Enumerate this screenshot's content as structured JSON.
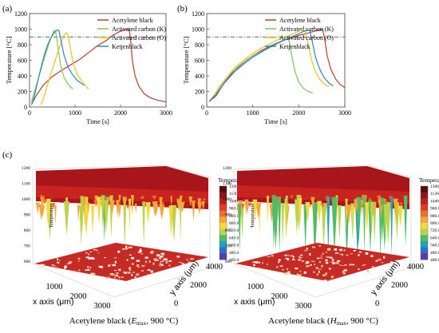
{
  "figure": {
    "panel_a_label": "(a)",
    "panel_b_label": "(b)",
    "panel_c_label": "(c)",
    "caption_left": {
      "prefix": "Acetylene black (",
      "symbol": "E",
      "sub": "max",
      "suffix": ", 900 °C)"
    },
    "caption_right": {
      "prefix": "Acetylene black (",
      "symbol": "H",
      "sub": "max",
      "suffix": ", 900 °C)"
    }
  },
  "chart_data": [
    {
      "panel": "a",
      "type": "line",
      "xlabel": "Time [s]",
      "ylabel": "Temperature [°C]",
      "xlim": [
        0,
        3000
      ],
      "ylim": [
        0,
        1200
      ],
      "xticks": [
        0,
        1000,
        2000,
        3000
      ],
      "yticks": [
        0,
        200,
        400,
        600,
        800,
        1000,
        1200
      ],
      "reference_line": 900,
      "legend": "top-right",
      "series": [
        {
          "name": "Acetylene black",
          "color": "#b5412f",
          "points": [
            [
              40,
              30
            ],
            [
              150,
              150
            ],
            [
              300,
              280
            ],
            [
              500,
              390
            ],
            [
              700,
              470
            ],
            [
              900,
              540
            ],
            [
              1100,
              610
            ],
            [
              1300,
              700
            ],
            [
              1500,
              790
            ],
            [
              1700,
              860
            ],
            [
              1830,
              920
            ],
            [
              1950,
              960
            ],
            [
              2050,
              985
            ],
            [
              2150,
              1000
            ],
            [
              2190,
              995
            ],
            [
              2220,
              880
            ],
            [
              2260,
              600
            ],
            [
              2320,
              400
            ],
            [
              2400,
              270
            ],
            [
              2520,
              170
            ],
            [
              2650,
              120
            ],
            [
              2800,
              90
            ],
            [
              3000,
              65
            ]
          ]
        },
        {
          "name": "Activated carbon (K)",
          "color": "#86c25a",
          "points": [
            [
              40,
              60
            ],
            [
              100,
              180
            ],
            [
              170,
              320
            ],
            [
              240,
              460
            ],
            [
              310,
              600
            ],
            [
              380,
              730
            ],
            [
              440,
              840
            ],
            [
              500,
              930
            ],
            [
              540,
              985
            ],
            [
              570,
              975
            ],
            [
              600,
              880
            ],
            [
              640,
              700
            ],
            [
              690,
              520
            ],
            [
              760,
              380
            ],
            [
              850,
              290
            ],
            [
              950,
              230
            ]
          ]
        },
        {
          "name": "Activated carbon (O)",
          "color": "#e8c41f",
          "points": [
            [
              250,
              30
            ],
            [
              330,
              150
            ],
            [
              420,
              330
            ],
            [
              520,
              520
            ],
            [
              620,
              700
            ],
            [
              700,
              830
            ],
            [
              760,
              920
            ],
            [
              800,
              950
            ],
            [
              830,
              945
            ],
            [
              850,
              920
            ],
            [
              900,
              750
            ],
            [
              960,
              560
            ],
            [
              1050,
              420
            ],
            [
              1150,
              330
            ],
            [
              1250,
              260
            ],
            [
              1300,
              230
            ]
          ]
        },
        {
          "name": "Ketjenblack",
          "color": "#2f86c6",
          "points": [
            [
              60,
              40
            ],
            [
              130,
              200
            ],
            [
              200,
              380
            ],
            [
              270,
              550
            ],
            [
              340,
              700
            ],
            [
              400,
              800
            ],
            [
              460,
              880
            ],
            [
              520,
              935
            ],
            [
              560,
              965
            ],
            [
              600,
              985
            ],
            [
              630,
              990
            ],
            [
              650,
              975
            ],
            [
              700,
              830
            ],
            [
              760,
              660
            ],
            [
              850,
              510
            ],
            [
              950,
              410
            ],
            [
              1050,
              340
            ],
            [
              1150,
              300
            ],
            [
              1200,
              280
            ]
          ]
        }
      ]
    },
    {
      "panel": "b",
      "type": "line",
      "xlabel": "Time [s]",
      "ylabel": "Temperature [°C]",
      "xlim": [
        0,
        3000
      ],
      "ylim": [
        0,
        1200
      ],
      "xticks": [
        0,
        1000,
        2000,
        3000
      ],
      "yticks": [
        0,
        200,
        400,
        600,
        800,
        1000,
        1200
      ],
      "reference_line": 900,
      "legend": "top-right",
      "series": [
        {
          "name": "Acetylene black",
          "color": "#b5412f",
          "points": [
            [
              50,
              70
            ],
            [
              200,
              140
            ],
            [
              400,
              330
            ],
            [
              600,
              470
            ],
            [
              800,
              570
            ],
            [
              1000,
              660
            ],
            [
              1200,
              730
            ],
            [
              1400,
              790
            ],
            [
              1600,
              840
            ],
            [
              1800,
              880
            ],
            [
              2000,
              920
            ],
            [
              2200,
              950
            ],
            [
              2350,
              975
            ],
            [
              2450,
              990
            ],
            [
              2520,
              995
            ],
            [
              2560,
              880
            ],
            [
              2620,
              650
            ],
            [
              2700,
              480
            ],
            [
              2800,
              360
            ],
            [
              2900,
              290
            ],
            [
              3000,
              250
            ]
          ]
        },
        {
          "name": "Activated carbon (K)",
          "color": "#86c25a",
          "points": [
            [
              50,
              70
            ],
            [
              150,
              140
            ],
            [
              300,
              280
            ],
            [
              500,
              420
            ],
            [
              700,
              530
            ],
            [
              900,
              620
            ],
            [
              1100,
              690
            ],
            [
              1300,
              740
            ],
            [
              1500,
              800
            ],
            [
              1650,
              850
            ],
            [
              1760,
              880
            ],
            [
              1800,
              830
            ],
            [
              1850,
              650
            ],
            [
              1920,
              450
            ],
            [
              2000,
              320
            ],
            [
              2100,
              240
            ],
            [
              2200,
              200
            ],
            [
              2300,
              180
            ]
          ]
        },
        {
          "name": "Activated carbon (O)",
          "color": "#e8c41f",
          "points": [
            [
              50,
              70
            ],
            [
              200,
              180
            ],
            [
              400,
              350
            ],
            [
              600,
              500
            ],
            [
              800,
              600
            ],
            [
              1000,
              690
            ],
            [
              1200,
              760
            ],
            [
              1400,
              820
            ],
            [
              1600,
              880
            ],
            [
              1800,
              920
            ],
            [
              1950,
              960
            ],
            [
              2050,
              985
            ],
            [
              2100,
              990
            ],
            [
              2140,
              970
            ],
            [
              2200,
              820
            ],
            [
              2270,
              620
            ],
            [
              2350,
              470
            ],
            [
              2450,
              360
            ],
            [
              2550,
              300
            ],
            [
              2650,
              260
            ]
          ]
        },
        {
          "name": "Ketjenblack",
          "color": "#2f86c6",
          "points": [
            [
              50,
              70
            ],
            [
              200,
              160
            ],
            [
              400,
              320
            ],
            [
              600,
              450
            ],
            [
              800,
              550
            ],
            [
              1000,
              640
            ],
            [
              1200,
              710
            ],
            [
              1400,
              780
            ],
            [
              1600,
              840
            ],
            [
              1800,
              890
            ],
            [
              2000,
              940
            ],
            [
              2100,
              970
            ],
            [
              2200,
              990
            ],
            [
              2240,
              980
            ],
            [
              2290,
              850
            ],
            [
              2360,
              650
            ],
            [
              2450,
              490
            ],
            [
              2550,
              380
            ],
            [
              2650,
              310
            ],
            [
              2750,
              270
            ]
          ]
        }
      ]
    },
    {
      "panel": "c-left",
      "type": "surface3d",
      "zlabel": "Temperature",
      "xlabel": "x axis (μm)",
      "ylabel": "y axis (μm)",
      "xticks": [
        1000,
        2000,
        3000
      ],
      "yticks": [
        0,
        2000,
        4000
      ],
      "zticks": [
        600,
        700,
        800,
        900,
        1000,
        1100,
        1200
      ],
      "colorbar": {
        "title": "Temperature",
        "ticks": [
          "1200",
          "1130",
          "1040",
          "960.0",
          "880.0",
          "800.0",
          "720.0",
          "640.0",
          "560.0",
          "480.0",
          "400.0"
        ],
        "colors": [
          "#5b0a10",
          "#8c1417",
          "#c11d1d",
          "#e23b23",
          "#f06e2c",
          "#f6a53a",
          "#f4d83f",
          "#b9d44a",
          "#4fbc68",
          "#21a3b9",
          "#2e6fce",
          "#5a3ba8"
        ]
      }
    },
    {
      "panel": "c-right",
      "type": "surface3d",
      "zlabel": "Temperature",
      "xlabel": "x axis (μm)",
      "ylabel": "y axis (μm)",
      "xticks": [
        1000,
        2000,
        3000
      ],
      "yticks": [
        0,
        2000,
        4000
      ],
      "zticks": [
        600,
        700,
        800,
        900,
        1000,
        1100,
        1200
      ],
      "colorbar": {
        "title": "Temperature",
        "ticks": [
          "1200",
          "1130",
          "1040",
          "960.0",
          "880.0",
          "800.0",
          "720.0",
          "640.0",
          "560.0",
          "480.0",
          "400.0"
        ],
        "colors": [
          "#5b0a10",
          "#8c1417",
          "#c11d1d",
          "#e23b23",
          "#f06e2c",
          "#f6a53a",
          "#f4d83f",
          "#b9d44a",
          "#4fbc68",
          "#21a3b9",
          "#2e6fce",
          "#5a3ba8"
        ]
      }
    }
  ]
}
